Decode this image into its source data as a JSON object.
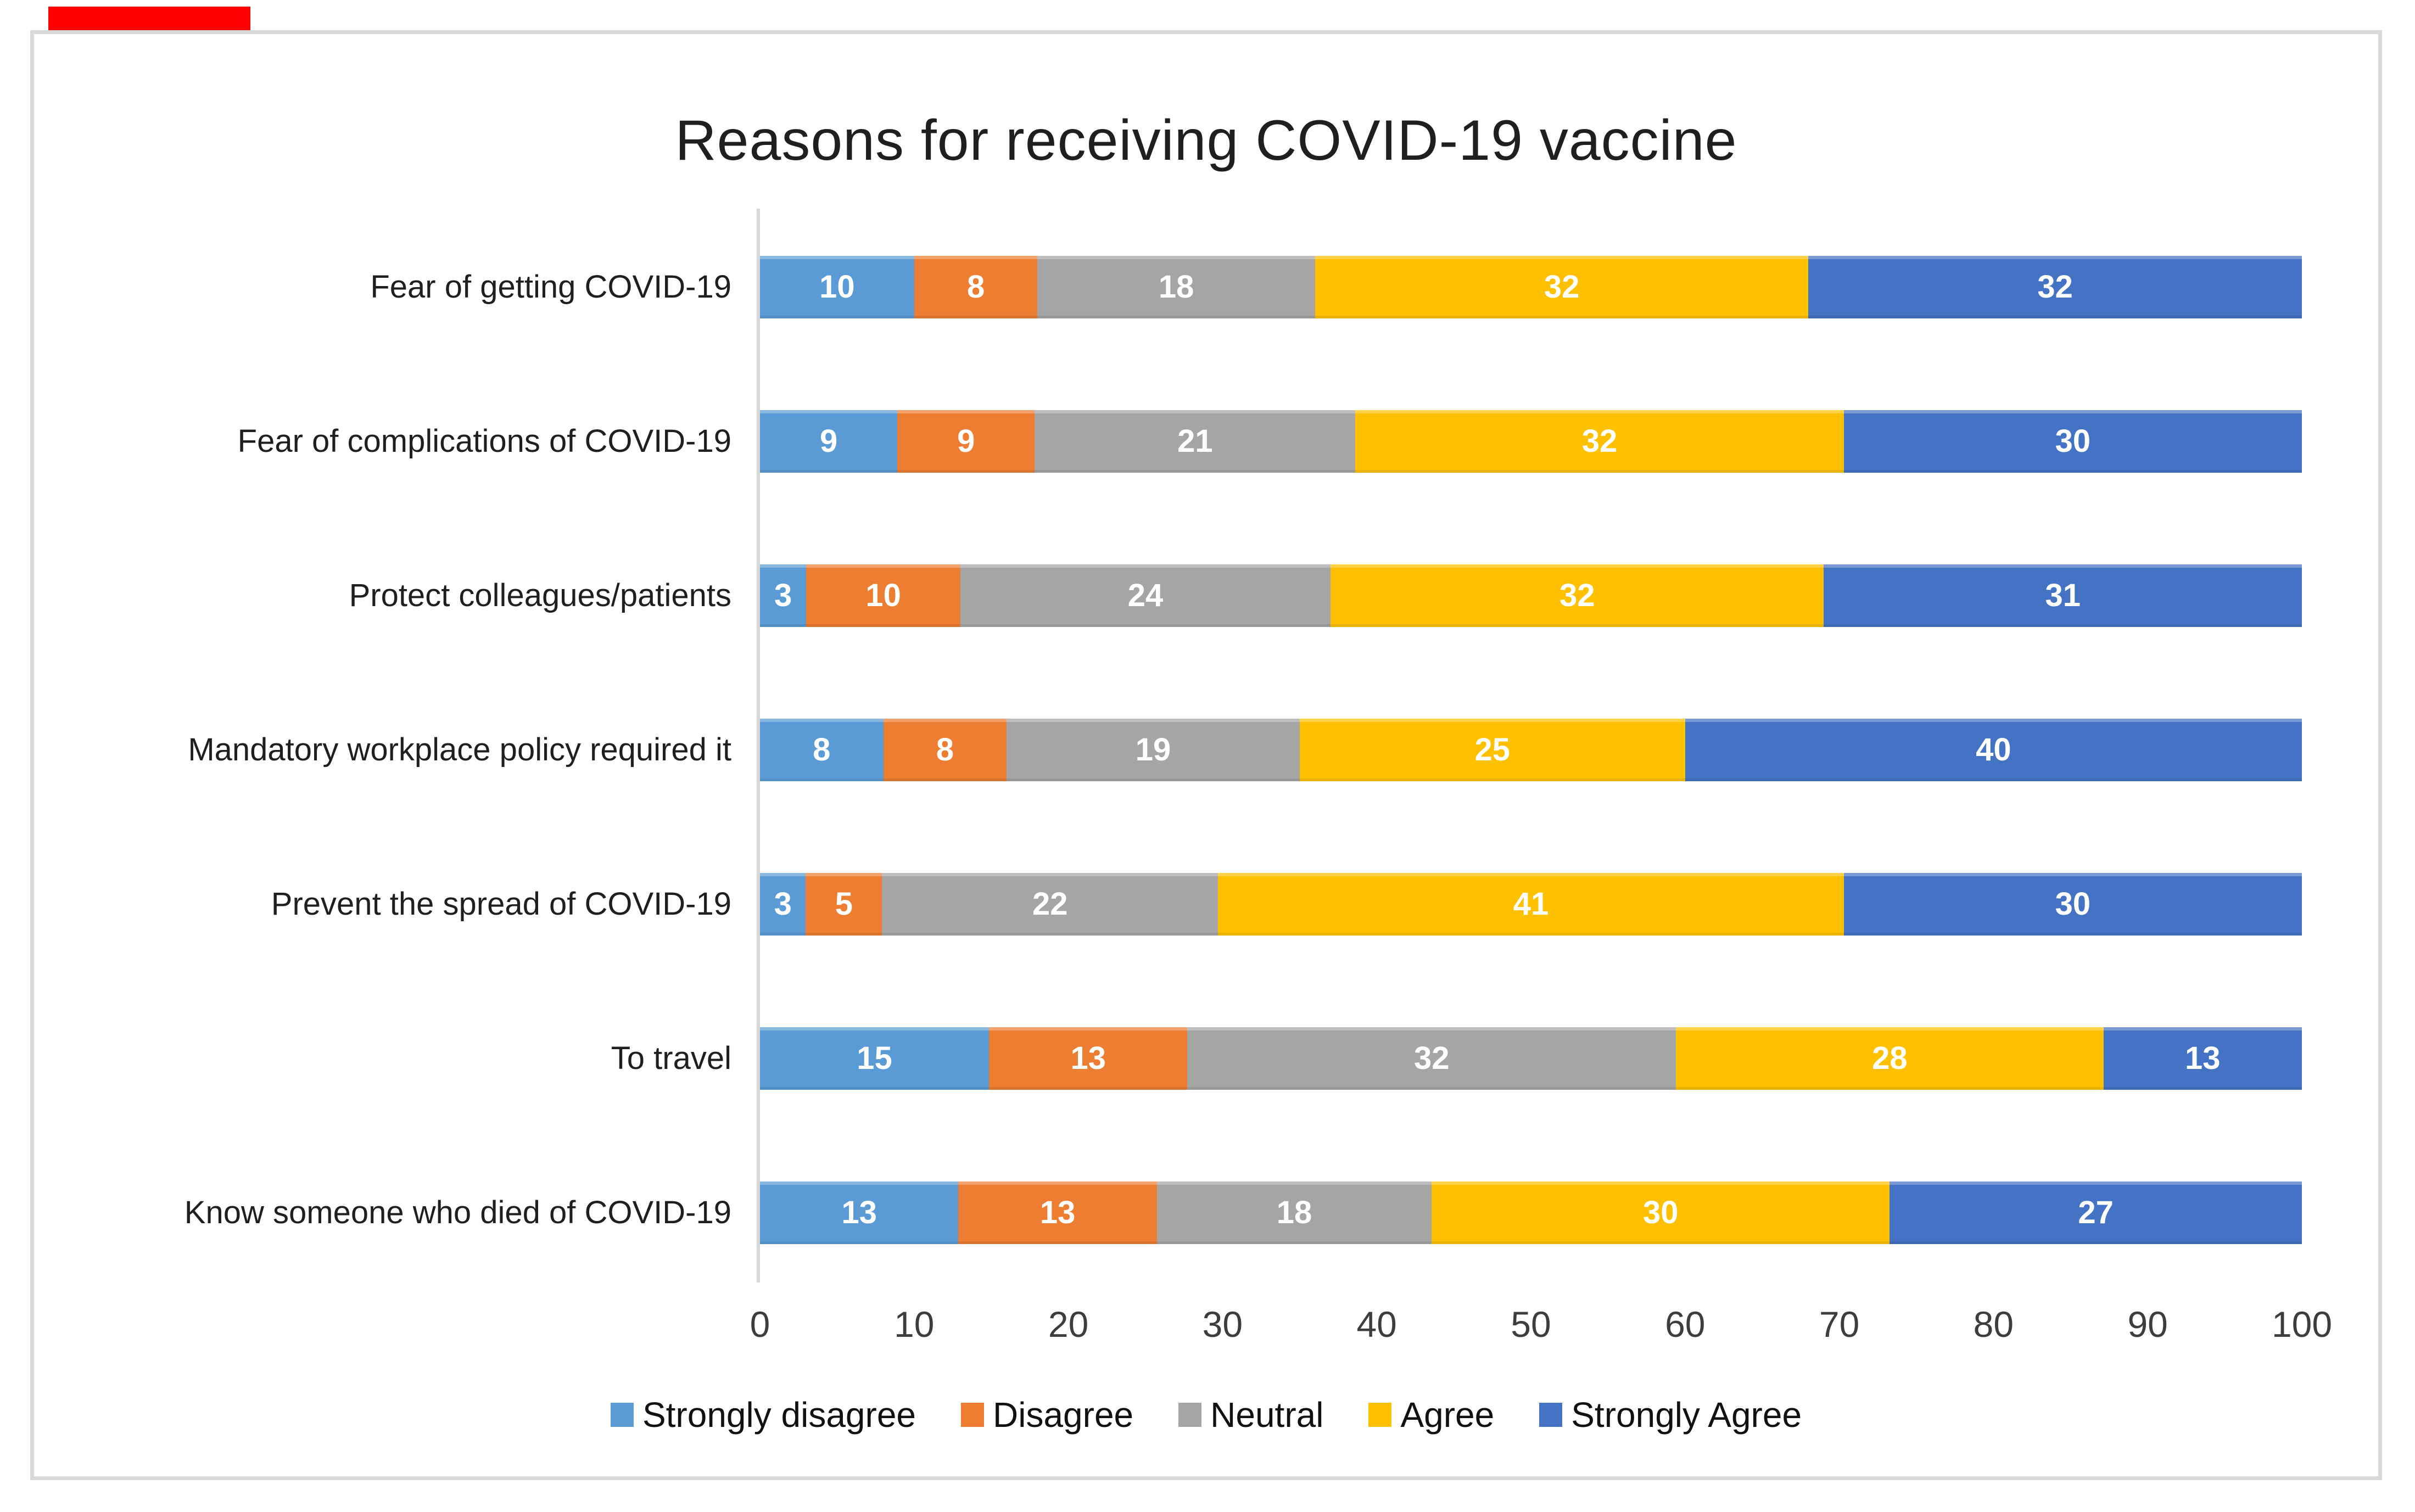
{
  "annotation": {
    "red_mark_color": "#fe0000"
  },
  "chart_data": {
    "type": "bar",
    "orientation": "horizontal",
    "stacked": true,
    "title": "Reasons for receiving COVID-19 vaccine",
    "categories": [
      "Fear of getting COVID-19",
      "Fear of complications of COVID-19",
      "Protect colleagues/patients",
      "Mandatory workplace policy required it",
      "Prevent the spread of COVID-19",
      "To travel",
      "Know someone who died of COVID-19"
    ],
    "series": [
      {
        "name": "Strongly disagree",
        "color": "#5B9BD5",
        "values": [
          10,
          9,
          3,
          8,
          3,
          15,
          13
        ]
      },
      {
        "name": "Disagree",
        "color": "#ED7D31",
        "values": [
          8,
          9,
          10,
          8,
          5,
          13,
          13
        ]
      },
      {
        "name": "Neutral",
        "color": "#A5A5A5",
        "values": [
          18,
          21,
          24,
          19,
          22,
          32,
          18
        ]
      },
      {
        "name": "Agree",
        "color": "#FFC000",
        "values": [
          32,
          32,
          32,
          25,
          41,
          28,
          30
        ]
      },
      {
        "name": "Strongly Agree",
        "color": "#4472C4",
        "values": [
          32,
          30,
          31,
          40,
          30,
          13,
          27
        ]
      }
    ],
    "xlabel": "",
    "ylabel": "",
    "x_axis": {
      "min": 0,
      "max": 100,
      "ticks": [
        0,
        10,
        20,
        30,
        40,
        50,
        60,
        70,
        80,
        90,
        100
      ]
    },
    "gridlines": false,
    "legend_position": "bottom",
    "value_labels": "inside-white-bold",
    "colors": {
      "axis_line": "#d9d9d9",
      "chart_border": "#d9d9d9",
      "tick_text": "#3d3d3d",
      "category_text": "#1f1f1f",
      "title_text": "#1f1f1f"
    }
  }
}
